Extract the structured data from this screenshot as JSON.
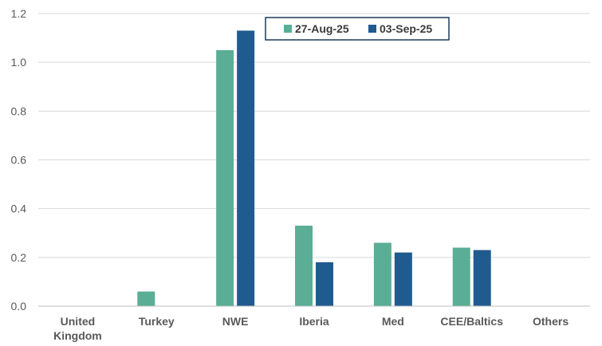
{
  "chart_data": {
    "type": "bar",
    "title": "",
    "xlabel": "",
    "ylabel": "",
    "categories": [
      [
        "United",
        "Kingdom"
      ],
      [
        "Turkey"
      ],
      [
        "NWE"
      ],
      [
        "Iberia"
      ],
      [
        "Med"
      ],
      [
        "CEE/Baltics"
      ],
      [
        "Others"
      ]
    ],
    "series": [
      {
        "name": "27-Aug-25",
        "color": "#5aae95",
        "values": [
          0,
          0.06,
          1.05,
          0.33,
          0.26,
          0.24,
          0
        ]
      },
      {
        "name": "03-Sep-25",
        "color": "#1f5b8e",
        "values": [
          0,
          0,
          1.13,
          0.18,
          0.22,
          0.23,
          0
        ]
      }
    ],
    "ylim": [
      0,
      1.2
    ],
    "yticks": [
      "0.0",
      "0.2",
      "0.4",
      "0.6",
      "0.8",
      "1.0",
      "1.2"
    ],
    "grid": true,
    "legend_position": "top-right"
  }
}
